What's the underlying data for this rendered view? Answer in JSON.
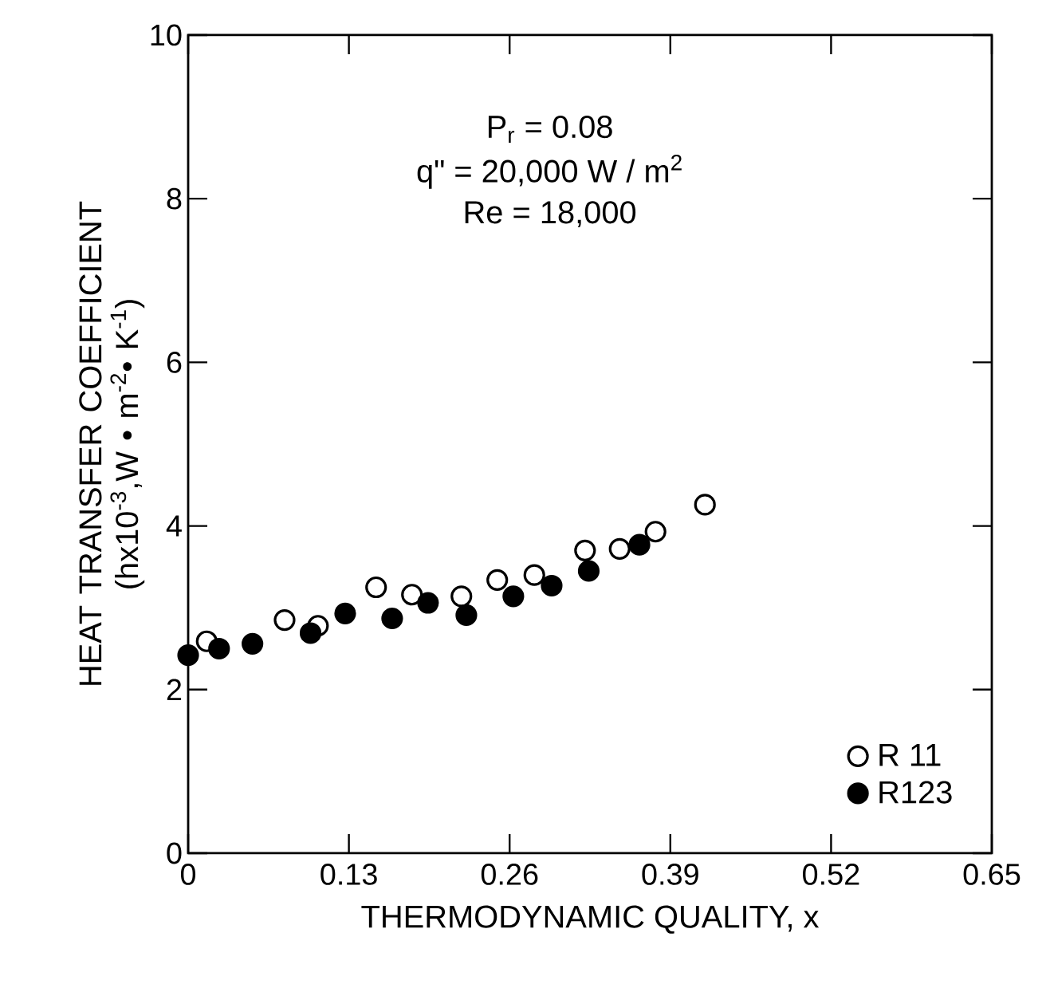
{
  "chart_data": {
    "type": "scatter",
    "xlabel": "THERMODYNAMIC QUALITY, x",
    "ylabel": "HEAT TRANSFER COEFFICIENT (hx10$^{-3}$,W • m$^{-2}$• K$^{-1}$)",
    "annotations": [
      "P$_{r}$  = 0.08",
      "q\" = 20,000 W / m$^{2}$",
      "Re = 18,000"
    ],
    "series": [
      {
        "name": "R 11",
        "color": "#ffffff",
        "x": [
          0.015,
          0.078,
          0.105,
          0.152,
          0.181,
          0.221,
          0.25,
          0.28,
          0.321,
          0.349,
          0.378,
          0.418
        ],
        "values": [
          2.59,
          2.85,
          2.78,
          3.25,
          3.16,
          3.14,
          3.34,
          3.4,
          3.7,
          3.72,
          3.93,
          4.26
        ]
      },
      {
        "name": "R123",
        "color": "#000000",
        "x": [
          0.0,
          0.025,
          0.052,
          0.099,
          0.127,
          0.165,
          0.194,
          0.225,
          0.263,
          0.294,
          0.324,
          0.365
        ],
        "values": [
          2.42,
          2.5,
          2.56,
          2.69,
          2.93,
          2.87,
          3.06,
          2.91,
          3.14,
          3.27,
          3.45,
          3.77
        ]
      }
    ],
    "xlim": [
      0,
      0.65
    ],
    "ylim": [
      0,
      10
    ],
    "xticks": [
      0,
      0.13,
      0.26,
      0.39,
      0.52,
      0.65
    ],
    "yticks": [
      0,
      2,
      4,
      6,
      8,
      10
    ],
    "marker": "circle",
    "legend": "bottom right",
    "grid": false
  }
}
